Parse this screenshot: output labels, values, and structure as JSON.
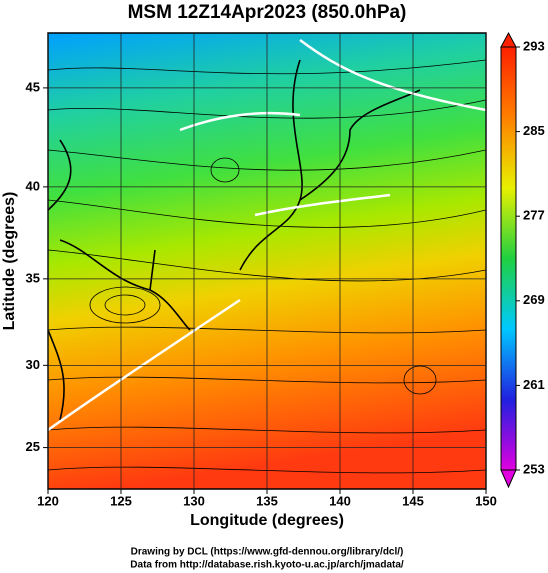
{
  "chart_data": {
    "type": "map",
    "title": "MSM 12Z14Apr2023 (850.0hPa)",
    "xlabel": "Longitude (degrees)",
    "ylabel": "Latitude  (degrees)",
    "projection": "mercator",
    "xlim": [
      120,
      150
    ],
    "ylim": [
      22.4,
      47.6
    ],
    "xticks": [
      120,
      125,
      130,
      135,
      140,
      145,
      150
    ],
    "yticks": [
      25,
      30,
      35,
      40,
      45
    ],
    "grid": true,
    "colorbar": {
      "lim": [
        253,
        293
      ],
      "ticks": [
        253,
        261,
        269,
        277,
        285,
        293
      ],
      "colors": [
        "#e000e0",
        "#2020e0",
        "#00c8ff",
        "#20d040",
        "#e8f000",
        "#ff8000",
        "#ff2000"
      ]
    },
    "credits": [
      "Drawing by DCL (https://www.gfd-dennou.org/library/dcl/)",
      "Data from http://database.rish.kyoto-u.ac.jp/arch/jmadata/"
    ]
  }
}
